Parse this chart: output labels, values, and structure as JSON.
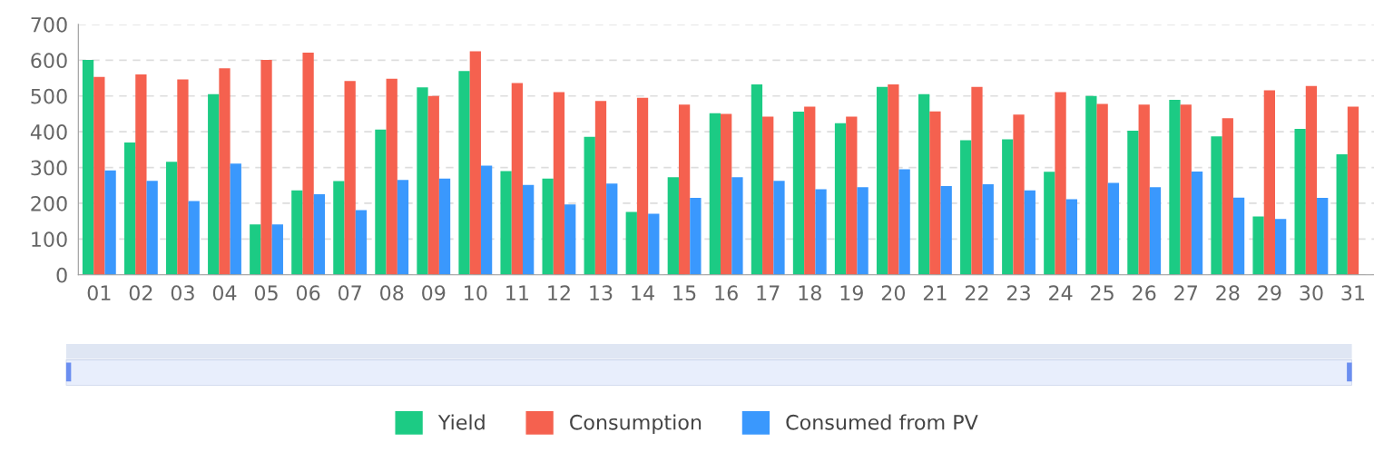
{
  "chart_data": {
    "type": "bar",
    "categories": [
      "01",
      "02",
      "03",
      "04",
      "05",
      "06",
      "07",
      "08",
      "09",
      "10",
      "11",
      "12",
      "13",
      "14",
      "15",
      "16",
      "17",
      "18",
      "19",
      "20",
      "21",
      "22",
      "23",
      "24",
      "25",
      "26",
      "27",
      "28",
      "29",
      "30",
      "31"
    ],
    "series": [
      {
        "name": "Yield",
        "color": "#1ccb84",
        "values": [
          601,
          370,
          316,
          505,
          141,
          236,
          262,
          406,
          524,
          570,
          290,
          269,
          386,
          176,
          273,
          452,
          532,
          456,
          424,
          525,
          505,
          376,
          379,
          288,
          500,
          403,
          489,
          387,
          163,
          408,
          337
        ]
      },
      {
        "name": "Consumption",
        "color": "#f5614f",
        "values": [
          553,
          560,
          546,
          577,
          601,
          621,
          542,
          548,
          500,
          625,
          536,
          511,
          486,
          495,
          476,
          450,
          442,
          470,
          442,
          532,
          457,
          525,
          448,
          511,
          478,
          476,
          476,
          438,
          516,
          528,
          470
        ]
      },
      {
        "name": "Consumed from PV",
        "color": "#3a98fd",
        "values": [
          292,
          263,
          206,
          311,
          141,
          225,
          181,
          265,
          269,
          305,
          251,
          197,
          255,
          171,
          215,
          273,
          263,
          239,
          245,
          295,
          248,
          253,
          236,
          211,
          257,
          245,
          289,
          216,
          156,
          215,
          null
        ]
      }
    ],
    "ylim": [
      0,
      700
    ],
    "yticks": [
      0,
      100,
      200,
      300,
      400,
      500,
      600,
      700
    ],
    "grid": "y",
    "legend": "bottom"
  }
}
